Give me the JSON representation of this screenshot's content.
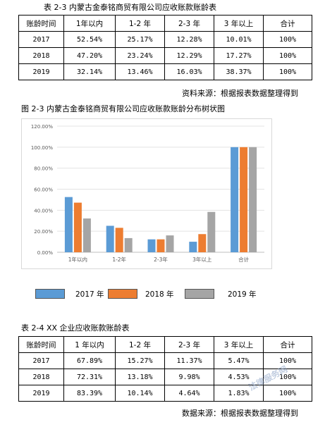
{
  "table1": {
    "caption": "表 2-3 内蒙古金泰铭商贸有限公司应收账款账龄表",
    "headers": [
      "账龄时间",
      "1年以内",
      "1-2 年",
      "2-3 年",
      "3 年以上",
      "合计"
    ],
    "rows": [
      [
        "2017",
        "52.54%",
        "25.17%",
        "12.28%",
        "10.01%",
        "100%"
      ],
      [
        "2018",
        "47.20%",
        "23.24%",
        "12.29%",
        "17.27%",
        "100%"
      ],
      [
        "2019",
        "32.14%",
        "13.46%",
        "16.03%",
        "38.37%",
        "100%"
      ]
    ],
    "source": "资料来源：根据报表数据整理得到"
  },
  "figure": {
    "caption": "图 2-3 内蒙古金泰铭商贸有限公司应收账款账龄分布树状图"
  },
  "chart_data": {
    "type": "bar",
    "categories": [
      "1年以内",
      "1-2年",
      "2-3年",
      "3年以上",
      "合计"
    ],
    "series": [
      {
        "name": "2017 年",
        "color": "#5b9bd5",
        "values": [
          52.54,
          25.17,
          12.28,
          10.01,
          100
        ]
      },
      {
        "name": "2018 年",
        "color": "#ed7d31",
        "values": [
          47.2,
          23.24,
          12.29,
          17.27,
          100
        ]
      },
      {
        "name": "2019 年",
        "color": "#a5a5a5",
        "values": [
          32.14,
          13.46,
          16.03,
          38.37,
          100
        ]
      }
    ],
    "yticks": [
      "0.00%",
      "20.00%",
      "40.00%",
      "60.00%",
      "80.00%",
      "100.00%",
      "120.00%"
    ],
    "ylim": [
      0,
      120
    ],
    "grid": true,
    "legend": "bottom"
  },
  "table2": {
    "caption": "表 2-4 XX 企业应收账款账龄表",
    "headers": [
      "账龄时间",
      "1 年以内",
      "1-2 年",
      "2-3 年",
      "3 年以上",
      "合计"
    ],
    "rows": [
      [
        "2017",
        "67.89%",
        "15.27%",
        "11.37%",
        "5.47%",
        "100%"
      ],
      [
        "2018",
        "72.31%",
        "13.18%",
        "9.98%",
        "4.53%",
        "100%"
      ],
      [
        "2019",
        "83.39%",
        "10.14%",
        "4.64%",
        "1.83%",
        "100%"
      ]
    ],
    "source": "数据来源：根据报表数据整理得到"
  },
  "watermark": "法律服务网"
}
